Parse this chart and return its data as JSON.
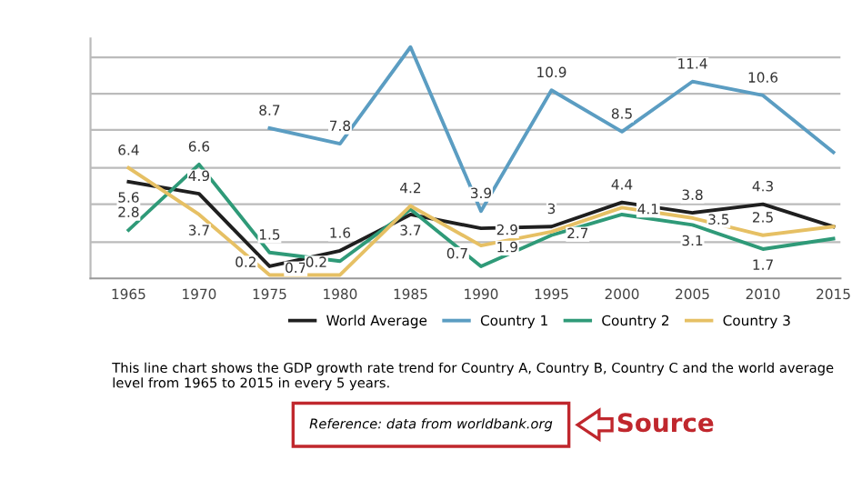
{
  "chart_data": {
    "type": "line",
    "x": [
      1965,
      1970,
      1975,
      1980,
      1985,
      1990,
      1995,
      2000,
      2005,
      2010,
      2015
    ],
    "xlim": [
      1962.3,
      2015.5
    ],
    "xticks": [
      1965,
      1970,
      1975,
      1980,
      1985,
      1990,
      1995,
      2000,
      2005,
      2010,
      2015
    ],
    "ylim": [
      0,
      13.9
    ],
    "yticks": [
      {
        "value": 2.1,
        "label": null
      },
      {
        "value": 4.3,
        "label": null
      },
      {
        "value": 6.4,
        "label": null
      },
      {
        "value": 8.6,
        "label": null
      },
      {
        "value": 10.7,
        "label": null
      },
      {
        "value": 12.8,
        "label": null
      }
    ],
    "tick_labels": "x",
    "grid": "y",
    "legend": "bottom",
    "marker": "none",
    "line_style": "solid",
    "series": [
      {
        "name": "World Average",
        "color": "#1f1f1f",
        "values": [
          5.6,
          4.9,
          0.7,
          1.6,
          3.7,
          2.9,
          3,
          4.4,
          3.8,
          4.3,
          3.0
        ],
        "value_labels": [
          "5.6",
          "4.9",
          "0.7",
          "1.6",
          "3.7",
          "2.9",
          "3",
          "4.4",
          "3.8",
          "4.3",
          null
        ]
      },
      {
        "name": "Country 1",
        "color": "#5b9dc2",
        "values": [
          null,
          null,
          8.7,
          7.8,
          13.4,
          3.9,
          10.9,
          8.5,
          11.4,
          10.6,
          7.3
        ],
        "value_labels": [
          null,
          null,
          "8.7",
          "7.8",
          null,
          "3.9",
          "10.9",
          "8.5",
          "11.4",
          "10.6",
          null
        ]
      },
      {
        "name": "Country 2",
        "color": "#2f9a78",
        "values": [
          2.8,
          6.6,
          1.5,
          1.0,
          4.0,
          0.7,
          2.5,
          3.7,
          3.1,
          1.7,
          2.3
        ],
        "value_labels": [
          "2.8",
          "6.6",
          "1.5",
          null,
          null,
          "0.7",
          null,
          null,
          "3.1",
          "1.7",
          null
        ]
      },
      {
        "name": "Country 3",
        "color": "#e6c064",
        "values": [
          6.4,
          3.7,
          0.2,
          0.2,
          4.2,
          1.9,
          2.7,
          4.1,
          3.5,
          2.5,
          3.0
        ],
        "value_labels": [
          "6.4",
          "3.7",
          "0.2",
          "0.2",
          "4.2",
          "1.9",
          "2.7",
          "4.1",
          "3.5",
          "2.5",
          null
        ]
      }
    ],
    "annotations": [
      "This line chart shows the GDP growth rate trend for Country A, Country B, Country C and the world average level from 1965 to 2015 in every 5 years.",
      "Reference: data from worldbank.org",
      "Source"
    ]
  }
}
